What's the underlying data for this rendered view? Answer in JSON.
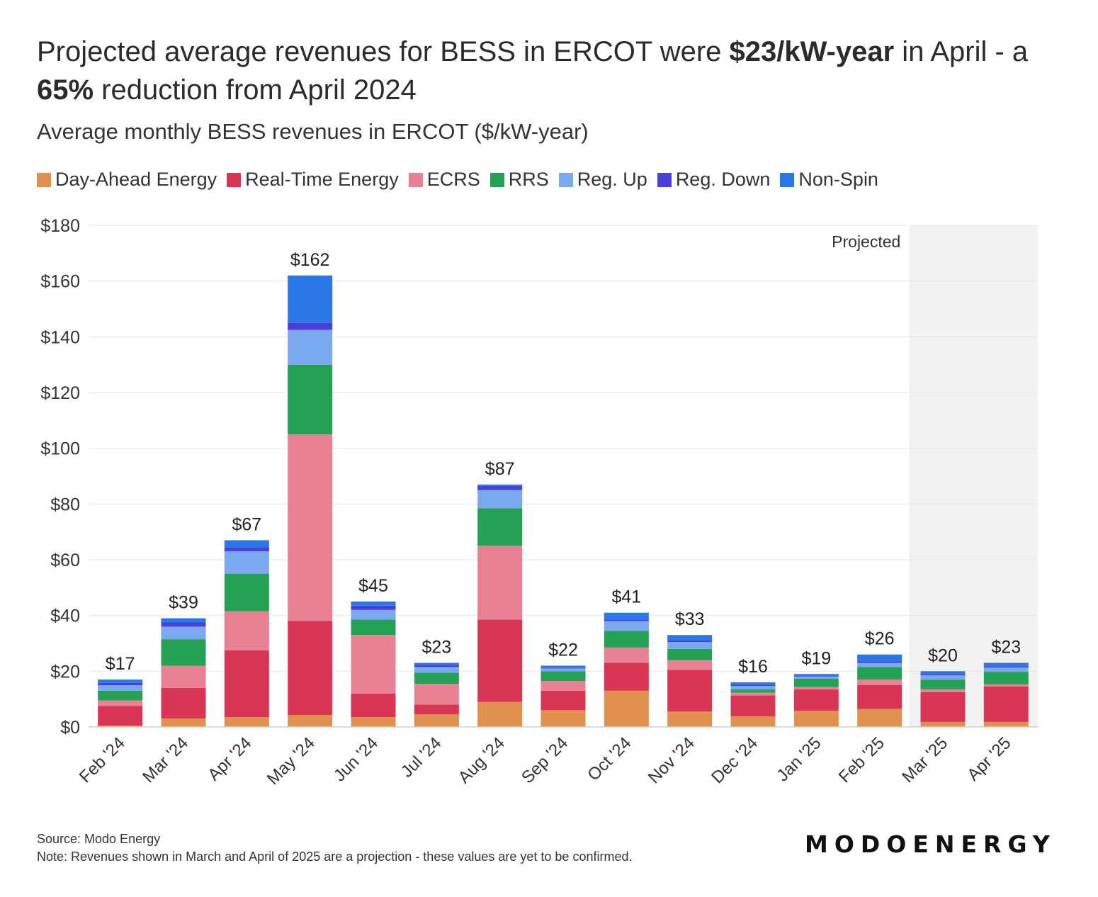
{
  "title": {
    "part1": "Projected average revenues for BESS in ERCOT were ",
    "bold1": "$23/kW-year",
    "part2": " in April - a ",
    "bold2": "65%",
    "part3": " reduction from April 2024"
  },
  "subtitle": "Average monthly BESS revenues in ERCOT ($/kW-year)",
  "projected_label": "Projected",
  "source": "Source: Modo Energy",
  "note": "Note: Revenues shown in March and April of 2025 are a projection - these values are yet to be confirmed.",
  "logo": "MODOENERGY",
  "colors": {
    "Day-Ahead Energy": "#e0914e",
    "Real-Time Energy": "#d93655",
    "ECRS": "#e88193",
    "RRS": "#25a153",
    "Reg. Up": "#7aa9f0",
    "Reg. Down": "#4b3fd9",
    "Non-Spin": "#2a78e8",
    "projected_shade": "#f2f2f2",
    "grid": "#e8e8e8"
  },
  "chart_data": {
    "type": "bar",
    "stacked": true,
    "categories": [
      "Feb '24",
      "Mar '24",
      "Apr '24",
      "May '24",
      "Jun '24",
      "Jul '24",
      "Aug '24",
      "Sep '24",
      "Oct '24",
      "Nov '24",
      "Dec '24",
      "Jan '25",
      "Feb '25",
      "Mar '25",
      "Apr '25"
    ],
    "series": [
      {
        "name": "Day-Ahead Energy",
        "values": [
          0.5,
          3,
          3.5,
          4.3,
          3.5,
          4.5,
          9,
          6,
          13,
          5.5,
          3.8,
          5.8,
          6.5,
          1.8,
          1.8
        ]
      },
      {
        "name": "Real-Time Energy",
        "values": [
          7,
          11,
          24,
          33.7,
          8.5,
          3.5,
          29.5,
          7,
          10,
          15,
          7.5,
          7.7,
          8.5,
          10.7,
          12.7
        ]
      },
      {
        "name": "ECRS",
        "values": [
          2,
          8,
          14,
          67,
          21,
          7.5,
          26.5,
          3.5,
          5.5,
          3.5,
          1,
          0.8,
          2,
          1,
          0.8
        ]
      },
      {
        "name": "RRS",
        "values": [
          3.5,
          9.5,
          13.5,
          25,
          5.5,
          4,
          13.5,
          3.5,
          6,
          4,
          1.2,
          3,
          4.5,
          3.5,
          4.5
        ]
      },
      {
        "name": "Reg. Up",
        "values": [
          2,
          4.5,
          8,
          12.5,
          3.5,
          2,
          6.5,
          1,
          3.5,
          2.5,
          1.2,
          0.8,
          1.5,
          1.5,
          1.5
        ]
      },
      {
        "name": "Reg. Down",
        "values": [
          0.8,
          1.5,
          1.5,
          2.5,
          1.5,
          0.8,
          1.5,
          0.3,
          0.5,
          0.5,
          0.3,
          0.2,
          0.5,
          0.5,
          0.5
        ]
      },
      {
        "name": "Non-Spin",
        "values": [
          1.2,
          1.5,
          2.5,
          17,
          1.5,
          0.7,
          0.5,
          0.7,
          2.5,
          2,
          1,
          0.7,
          2.5,
          1,
          1.2
        ]
      }
    ],
    "totals": [
      17,
      39,
      67,
      162,
      45,
      23,
      87,
      22,
      41,
      33,
      16,
      19,
      26,
      20,
      23
    ],
    "total_labels": [
      "$17",
      "$39",
      "$67",
      "$162",
      "$45",
      "$23",
      "$87",
      "$22",
      "$41",
      "$33",
      "$16",
      "$19",
      "$26",
      "$20",
      "$23"
    ],
    "y_ticks": [
      0,
      20,
      40,
      60,
      80,
      100,
      120,
      140,
      160,
      180
    ],
    "y_tick_labels": [
      "$0",
      "$20",
      "$40",
      "$60",
      "$80",
      "$100",
      "$120",
      "$140",
      "$160",
      "$180"
    ],
    "ylim": [
      0,
      180
    ],
    "projected_categories": [
      "Mar '25",
      "Apr '25"
    ],
    "grid": true,
    "legend_position": "top"
  }
}
